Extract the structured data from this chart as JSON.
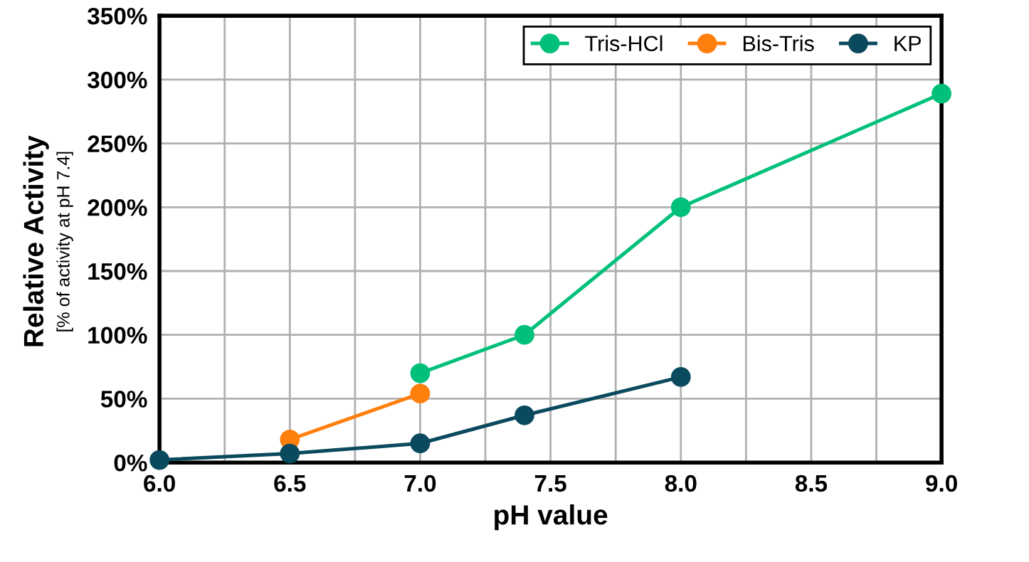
{
  "chart_data": {
    "type": "line",
    "xlabel": "pH value",
    "ylabel": "Relative Activity\n[% of activity at pH 7.4]",
    "series": [
      {
        "name": "Tris-HCl",
        "color": "#00c07a",
        "x": [
          7.0,
          7.4,
          8.0,
          9.0
        ],
        "values": [
          70,
          100,
          200,
          289
        ]
      },
      {
        "name": "Bis-Tris",
        "color": "#ff7f0e",
        "x": [
          6.5,
          7.0
        ],
        "values": [
          18,
          54
        ]
      },
      {
        "name": "KP",
        "color": "#0b4a5e",
        "x": [
          6.0,
          6.5,
          7.0,
          7.4,
          8.0
        ],
        "values": [
          2,
          7,
          15,
          37,
          67
        ]
      }
    ],
    "xlim": [
      6.0,
      9.0
    ],
    "xticks": [
      {
        "value": 6.0,
        "label": "6.0"
      },
      {
        "value": 6.25,
        "label": null
      },
      {
        "value": 6.5,
        "label": "6.5"
      },
      {
        "value": 6.75,
        "label": null
      },
      {
        "value": 7.0,
        "label": "7.0"
      },
      {
        "value": 7.25,
        "label": null
      },
      {
        "value": 7.5,
        "label": "7.5"
      },
      {
        "value": 7.75,
        "label": null
      },
      {
        "value": 8.0,
        "label": "8.0"
      },
      {
        "value": 8.25,
        "label": null
      },
      {
        "value": 8.5,
        "label": "8.5"
      },
      {
        "value": 8.75,
        "label": null
      },
      {
        "value": 9.0,
        "label": "9.0"
      }
    ],
    "ylim": [
      0,
      350
    ],
    "yticks": [
      {
        "value": 0,
        "label": "0%"
      },
      {
        "value": 50,
        "label": "50%"
      },
      {
        "value": 100,
        "label": "100%"
      },
      {
        "value": 150,
        "label": "150%"
      },
      {
        "value": 200,
        "label": "200%"
      },
      {
        "value": 250,
        "label": "250%"
      },
      {
        "value": 300,
        "label": "300%"
      },
      {
        "value": 350,
        "label": "350%"
      }
    ],
    "grid": true,
    "legend": "top right",
    "marker": "circle",
    "line_style": "solid"
  }
}
